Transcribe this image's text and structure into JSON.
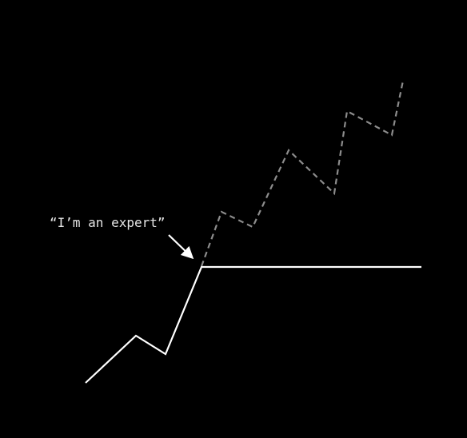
{
  "annotation": {
    "label": "“I’m an expert”"
  },
  "colors": {
    "background": "#000000",
    "actual_line": "#ffffff",
    "imagined_line": "#8c8c8c",
    "text": "#e6e6e6"
  },
  "lines": {
    "actual": {
      "style": "solid"
    },
    "imagined": {
      "style": "dashed"
    }
  }
}
